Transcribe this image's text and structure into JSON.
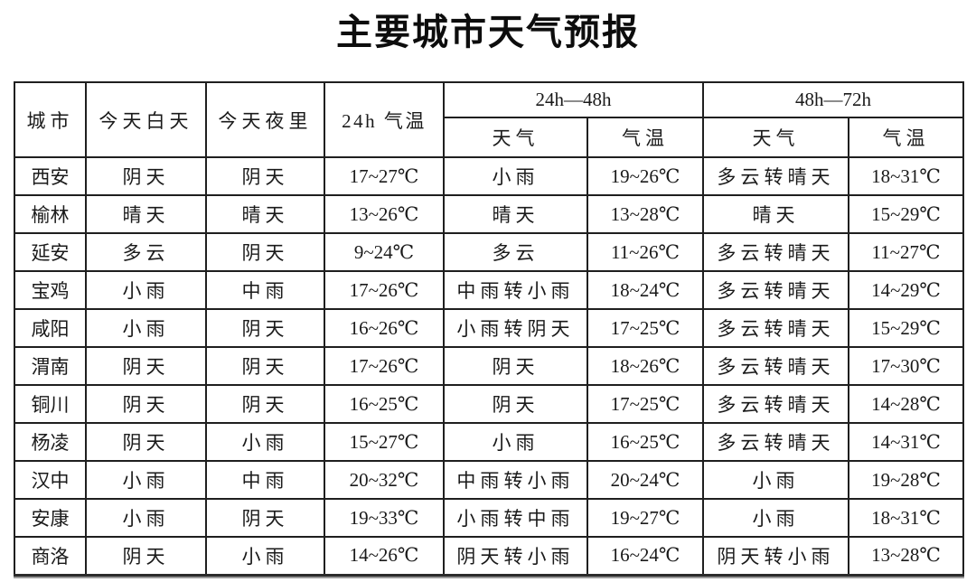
{
  "title": "主要城市天气预报",
  "colors": {
    "background": "#ffffff",
    "text": "#1a1a1a",
    "border": "#1f1f1f"
  },
  "table": {
    "headers": {
      "city": "城市",
      "today_day": "今天白天",
      "today_night": "今天夜里",
      "temp_24h": "24h 气温",
      "group_24_48": "24h—48h",
      "group_48_72": "48h—72h",
      "weather_24_48": "天气",
      "temp_24_48": "气温",
      "weather_48_72": "天气",
      "temp_48_72": "气温"
    },
    "rows": [
      {
        "city": "西安",
        "today_day": "阴天",
        "today_night": "阴天",
        "temp_24h": "17~27℃",
        "weather_24_48": "小雨",
        "temp_24_48": "19~26℃",
        "weather_48_72": "多云转晴天",
        "temp_48_72": "18~31℃"
      },
      {
        "city": "榆林",
        "today_day": "晴天",
        "today_night": "晴天",
        "temp_24h": "13~26℃",
        "weather_24_48": "晴天",
        "temp_24_48": "13~28℃",
        "weather_48_72": "晴天",
        "temp_48_72": "15~29℃"
      },
      {
        "city": "延安",
        "today_day": "多云",
        "today_night": "阴天",
        "temp_24h": "9~24℃",
        "weather_24_48": "多云",
        "temp_24_48": "11~26℃",
        "weather_48_72": "多云转晴天",
        "temp_48_72": "11~27℃"
      },
      {
        "city": "宝鸡",
        "today_day": "小雨",
        "today_night": "中雨",
        "temp_24h": "17~26℃",
        "weather_24_48": "中雨转小雨",
        "temp_24_48": "18~24℃",
        "weather_48_72": "多云转晴天",
        "temp_48_72": "14~29℃"
      },
      {
        "city": "咸阳",
        "today_day": "小雨",
        "today_night": "阴天",
        "temp_24h": "16~26℃",
        "weather_24_48": "小雨转阴天",
        "temp_24_48": "17~25℃",
        "weather_48_72": "多云转晴天",
        "temp_48_72": "15~29℃"
      },
      {
        "city": "渭南",
        "today_day": "阴天",
        "today_night": "阴天",
        "temp_24h": "17~26℃",
        "weather_24_48": "阴天",
        "temp_24_48": "18~26℃",
        "weather_48_72": "多云转晴天",
        "temp_48_72": "17~30℃"
      },
      {
        "city": "铜川",
        "today_day": "阴天",
        "today_night": "阴天",
        "temp_24h": "16~25℃",
        "weather_24_48": "阴天",
        "temp_24_48": "17~25℃",
        "weather_48_72": "多云转晴天",
        "temp_48_72": "14~28℃"
      },
      {
        "city": "杨凌",
        "today_day": "阴天",
        "today_night": "小雨",
        "temp_24h": "15~27℃",
        "weather_24_48": "小雨",
        "temp_24_48": "16~25℃",
        "weather_48_72": "多云转晴天",
        "temp_48_72": "14~31℃"
      },
      {
        "city": "汉中",
        "today_day": "小雨",
        "today_night": "中雨",
        "temp_24h": "20~32℃",
        "weather_24_48": "中雨转小雨",
        "temp_24_48": "20~24℃",
        "weather_48_72": "小雨",
        "temp_48_72": "19~28℃"
      },
      {
        "city": "安康",
        "today_day": "小雨",
        "today_night": "阴天",
        "temp_24h": "19~33℃",
        "weather_24_48": "小雨转中雨",
        "temp_24_48": "19~27℃",
        "weather_48_72": "小雨",
        "temp_48_72": "18~31℃"
      },
      {
        "city": "商洛",
        "today_day": "阴天",
        "today_night": "小雨",
        "temp_24h": "14~26℃",
        "weather_24_48": "阴天转小雨",
        "temp_24_48": "16~24℃",
        "weather_48_72": "阴天转小雨",
        "temp_48_72": "13~28℃"
      }
    ]
  }
}
